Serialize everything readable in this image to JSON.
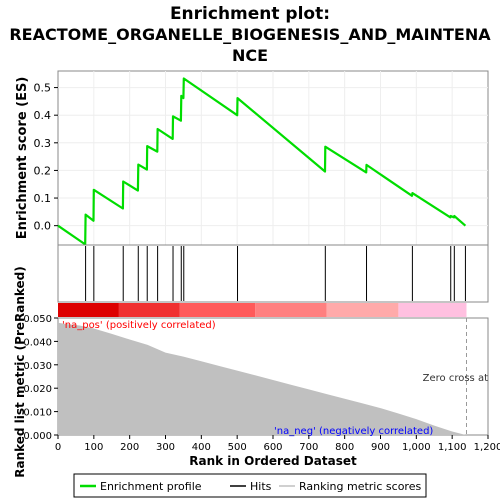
{
  "chart_data": {
    "type": "line",
    "title_line1": "Enrichment plot:",
    "title_line2": "REACTOME_ORGANELLE_BIOGENESIS_AND_MAINTENA",
    "title_line3": "NCE",
    "top_panel": {
      "ylabel": "Enrichment score (ES)",
      "ylim": [
        -0.07,
        0.56
      ],
      "yticks": [
        0.0,
        0.1,
        0.2,
        0.3,
        0.4,
        0.5
      ],
      "ytick_labels": [
        "0.0",
        "0.1",
        "0.2",
        "0.3",
        "0.4",
        "0.5"
      ],
      "series": [
        {
          "name": "Enrichment profile",
          "color": "#00dd00",
          "x": [
            0,
            76,
            77,
            99,
            100,
            181,
            182,
            223,
            224,
            248,
            249,
            277,
            278,
            320,
            321,
            343,
            344,
            350,
            351,
            500,
            501,
            745,
            746,
            860,
            861,
            988,
            989,
            1095,
            1096,
            1105,
            1106,
            1137
          ],
          "y": [
            0.0,
            -0.068,
            0.04,
            0.018,
            0.13,
            0.062,
            0.16,
            0.127,
            0.221,
            0.203,
            0.288,
            0.268,
            0.35,
            0.314,
            0.396,
            0.38,
            0.47,
            0.462,
            0.533,
            0.4,
            0.462,
            0.196,
            0.286,
            0.193,
            0.22,
            0.108,
            0.118,
            0.03,
            0.035,
            0.03,
            0.035,
            0.0
          ]
        }
      ]
    },
    "hits": {
      "name": "Hits",
      "color": "#000000",
      "ranks": [
        77,
        100,
        182,
        224,
        249,
        278,
        321,
        344,
        351,
        501,
        746,
        861,
        989,
        1096,
        1106,
        1137
      ]
    },
    "ranked_list_panel": {
      "ylabel_line1": "Ranked list metric (PreRanked)",
      "xlabel": "Rank in Ordered Dataset",
      "ylim": [
        0.0,
        0.05
      ],
      "yticks": [
        0.0,
        0.01,
        0.02,
        0.03,
        0.04,
        0.05
      ],
      "ytick_labels": [
        "0.000",
        "0.010",
        "0.020",
        "0.030",
        "0.040",
        "0.050"
      ],
      "series": [
        {
          "name": "Ranking metric scores",
          "color": "#c0c0c0",
          "x": [
            0,
            20,
            60,
            100,
            150,
            200,
            250,
            300,
            350,
            400,
            450,
            500,
            550,
            600,
            650,
            700,
            750,
            800,
            850,
            900,
            950,
            1000,
            1050,
            1100,
            1130,
            1140
          ],
          "y": [
            0.048,
            0.0475,
            0.0468,
            0.0455,
            0.0432,
            0.0408,
            0.0385,
            0.0352,
            0.0335,
            0.0315,
            0.0295,
            0.0275,
            0.0255,
            0.0235,
            0.0215,
            0.0195,
            0.0175,
            0.0155,
            0.0135,
            0.0115,
            0.0092,
            0.0068,
            0.004,
            0.0015,
            0.0003,
            0.0
          ]
        }
      ],
      "pos_label": "'na_pos' (positively correlated)",
      "neg_label": "'na_neg' (negatively correlated)",
      "zero_cross_label": "Zero cross at",
      "zero_cross_rank": 1140,
      "pos_label_color": "#ff0000",
      "neg_label_color": "#0000ff"
    },
    "color_bar": {
      "segments": [
        {
          "from": 0,
          "to": 170,
          "color": "#dd0000"
        },
        {
          "from": 170,
          "to": 340,
          "color": "#f03030"
        },
        {
          "from": 340,
          "to": 550,
          "color": "#ff5a5a"
        },
        {
          "from": 550,
          "to": 750,
          "color": "#ff8080"
        },
        {
          "from": 750,
          "to": 950,
          "color": "#ffaaaa"
        },
        {
          "from": 950,
          "to": 1140,
          "color": "#ffc0e0"
        }
      ]
    },
    "xlim": [
      0,
      1200
    ],
    "xticks": [
      0,
      100,
      200,
      300,
      400,
      500,
      600,
      700,
      800,
      900,
      1000,
      1100,
      1200
    ],
    "xtick_labels": [
      "0",
      "100",
      "200",
      "300",
      "400",
      "500",
      "600",
      "700",
      "800",
      "900",
      "1,000",
      "1,100",
      "1,200"
    ],
    "legend": {
      "placement": "bottom",
      "items": [
        "Enrichment profile",
        "Hits",
        "Ranking metric scores"
      ]
    }
  }
}
